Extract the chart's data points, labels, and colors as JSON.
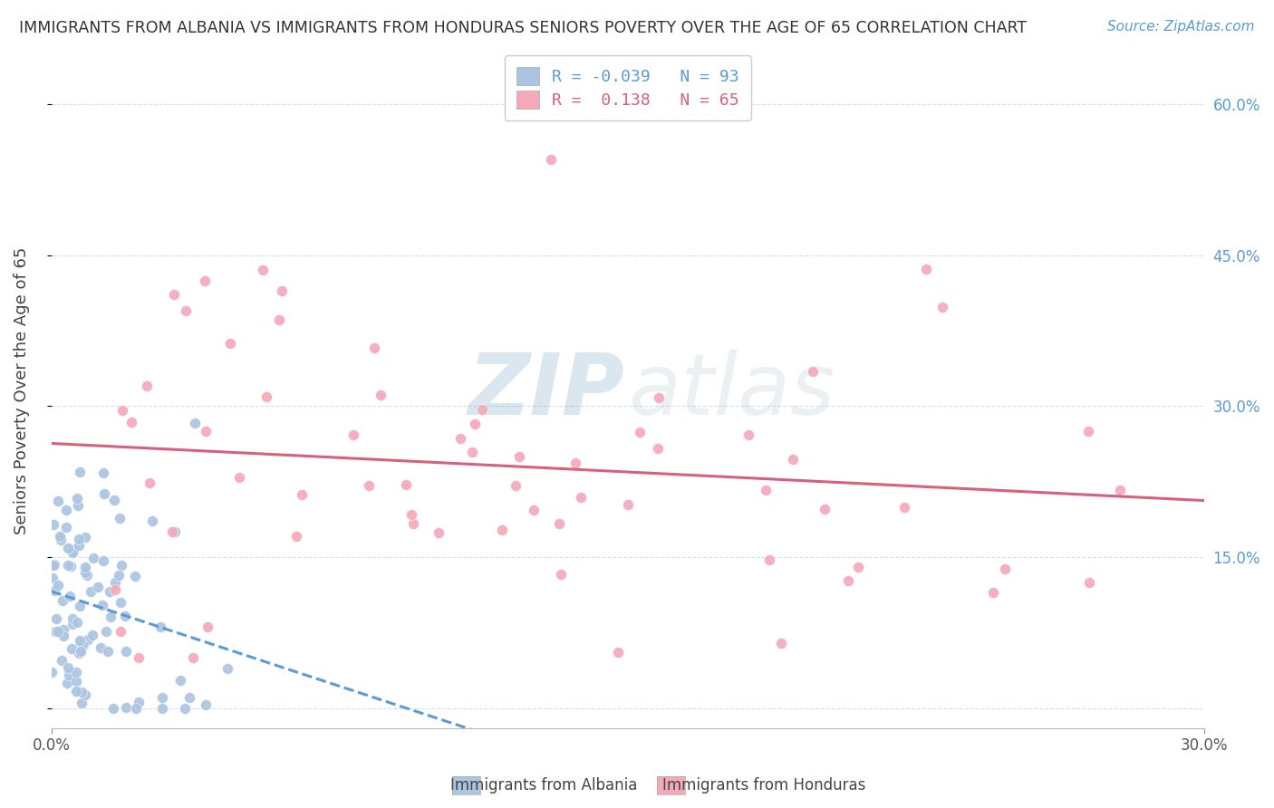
{
  "title": "IMMIGRANTS FROM ALBANIA VS IMMIGRANTS FROM HONDURAS SENIORS POVERTY OVER THE AGE OF 65 CORRELATION CHART",
  "source": "Source: ZipAtlas.com",
  "ylabel": "Seniors Poverty Over the Age of 65",
  "xlabel_albania": "Immigrants from Albania",
  "xlabel_honduras": "Immigrants from Honduras",
  "albania_R": -0.039,
  "albania_N": 93,
  "honduras_R": 0.138,
  "honduras_N": 65,
  "xlim": [
    0.0,
    0.3
  ],
  "ylim": [
    -0.02,
    0.65
  ],
  "yticks": [
    0.0,
    0.15,
    0.3,
    0.45,
    0.6
  ],
  "xticks": [
    0.0,
    0.3
  ],
  "xtick_labels": [
    "0.0%",
    "30.0%"
  ],
  "right_ytick_labels": [
    "",
    "15.0%",
    "30.0%",
    "45.0%",
    "60.0%"
  ],
  "albania_color": "#aac4e2",
  "honduras_color": "#f4a8b8",
  "albania_line_color": "#5b9bd5",
  "honduras_line_color": "#d9607a",
  "background_color": "#ffffff",
  "grid_color": "#c8d8ea",
  "zip_color": "#a0b8d0",
  "atlas_color": "#b8c8d8",
  "title_color": "#333333",
  "source_color": "#5b9bd5",
  "right_tick_color": "#5b9bd5",
  "legend_text_color_albania": "#5b9bd5",
  "legend_text_color_honduras": "#d9607a"
}
